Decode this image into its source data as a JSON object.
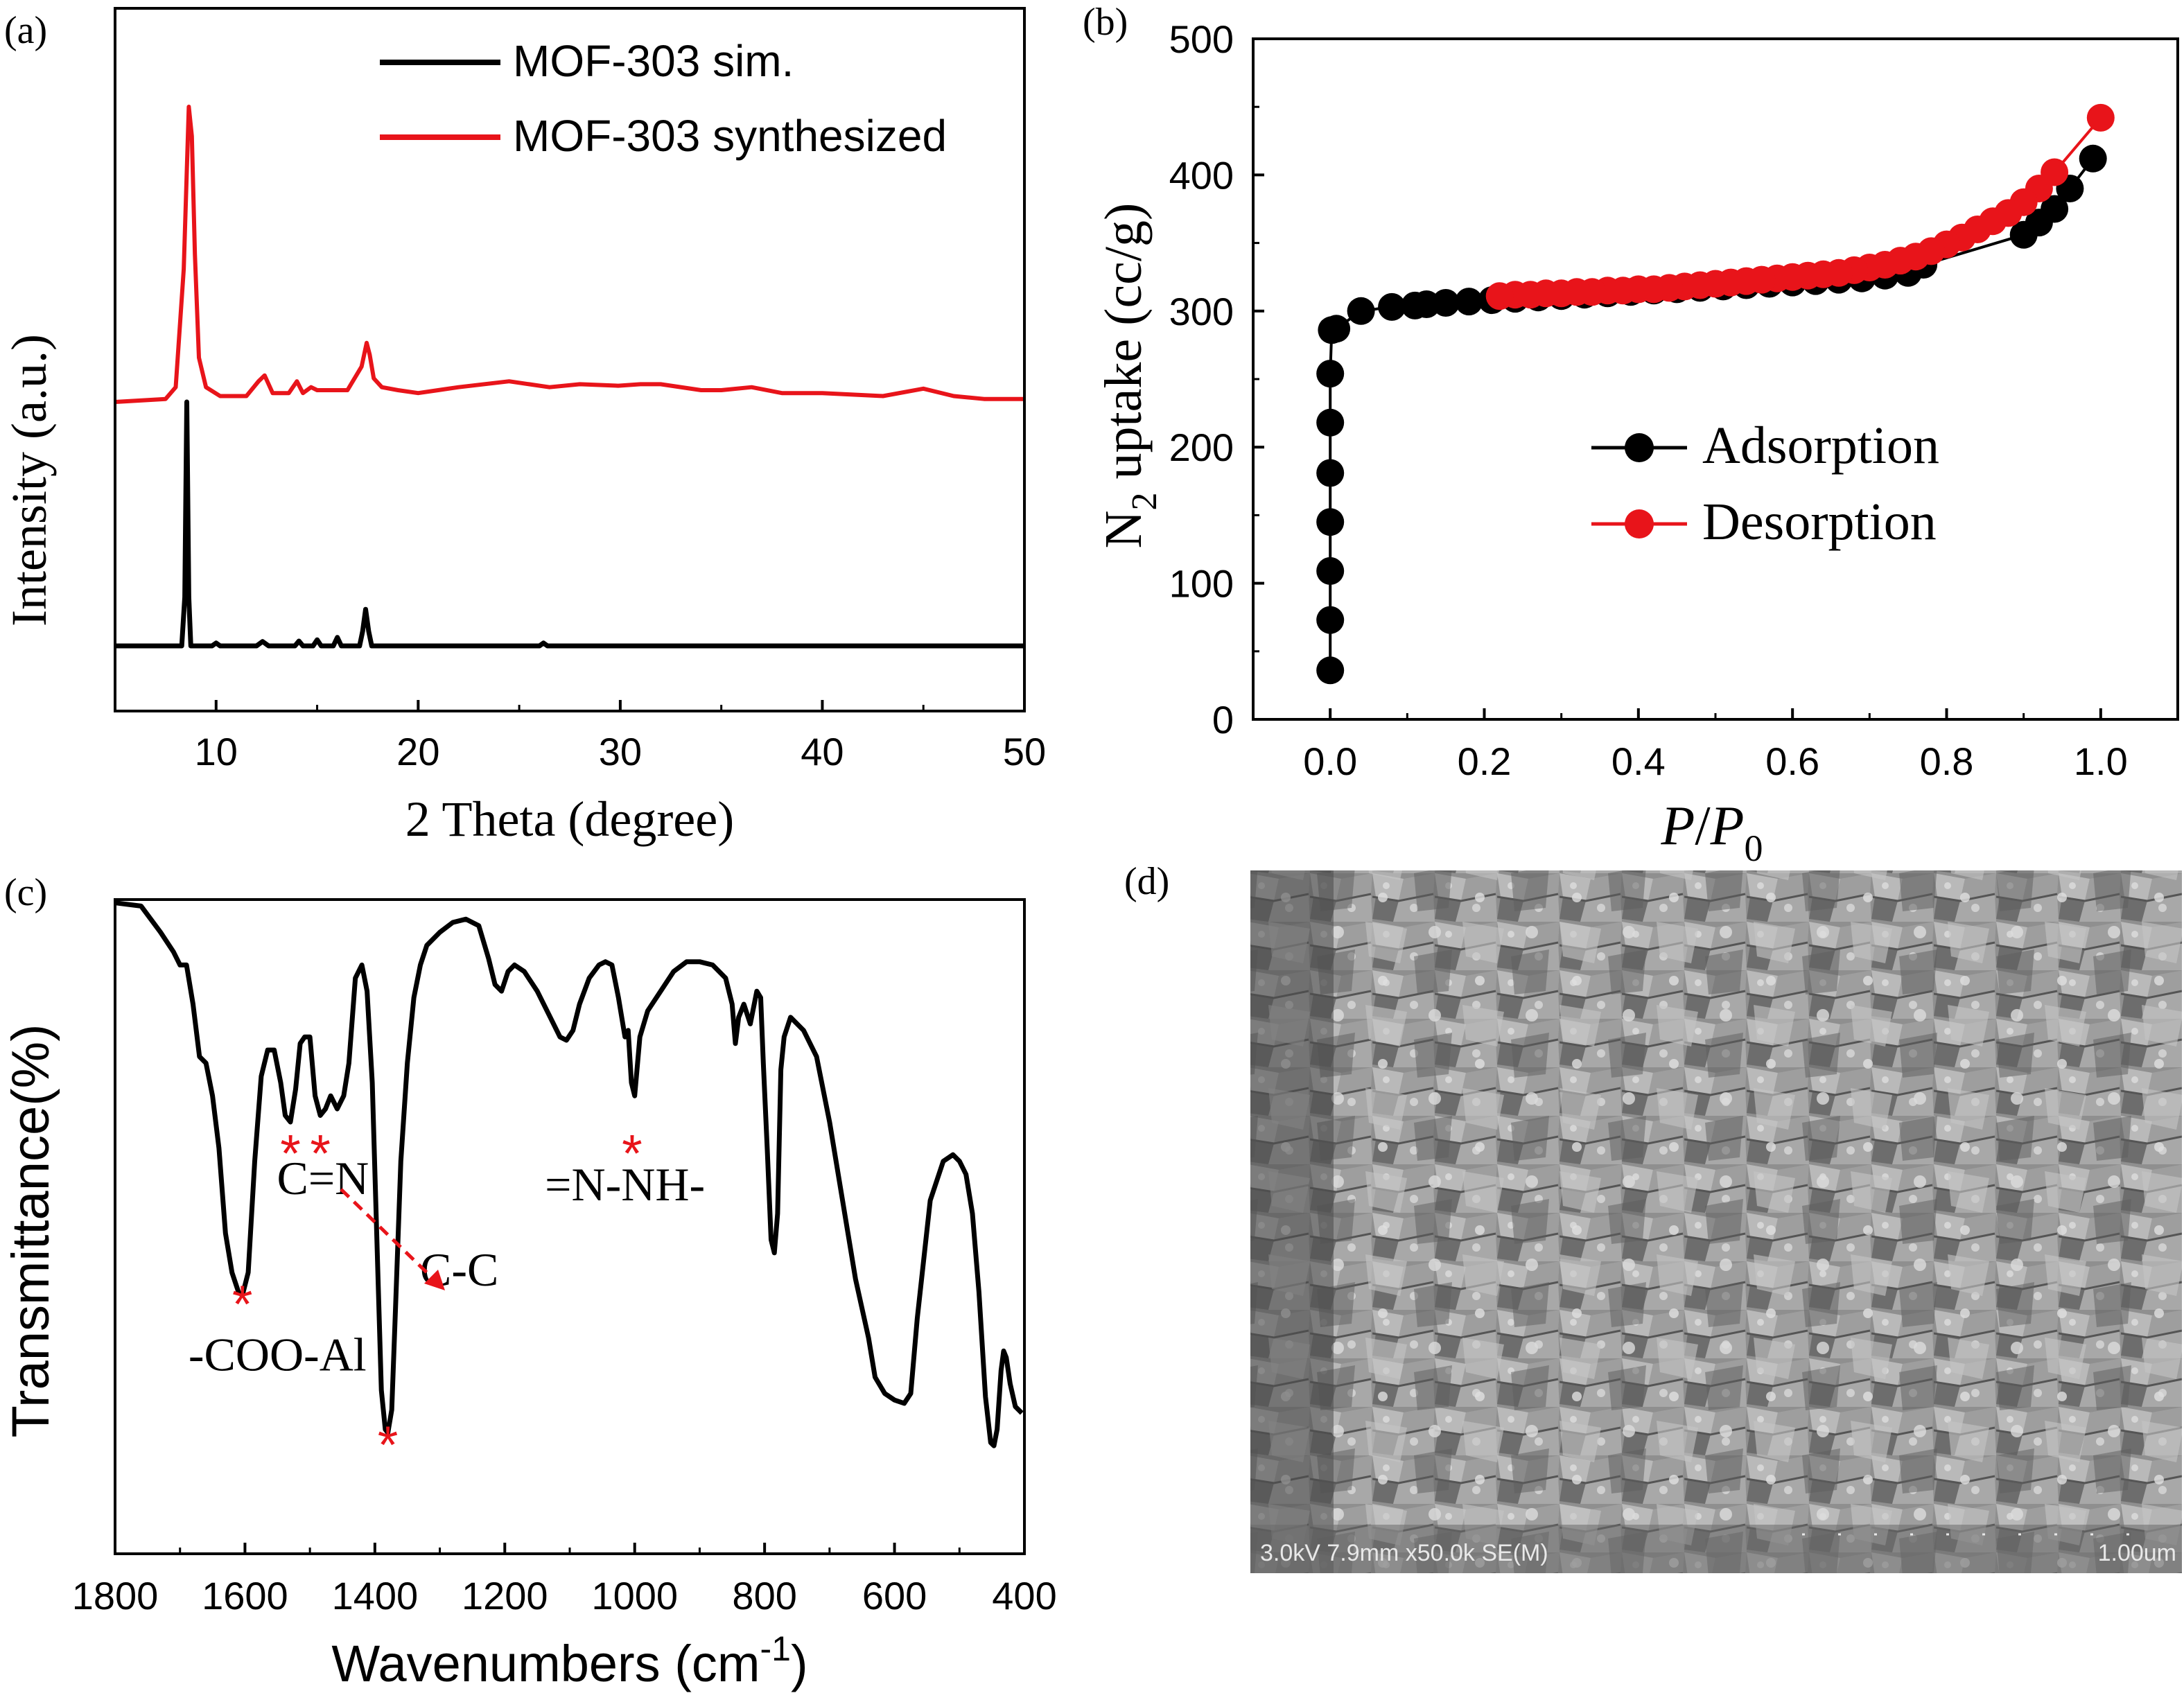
{
  "panel_labels": [
    "(a)",
    "(b)",
    "(c)",
    "(d)"
  ],
  "colors": {
    "black": "#000000",
    "red": "#e8141a",
    "sem_dark": "#3c3c3c",
    "sem_light": "#b4b4b4"
  },
  "sem": {
    "info": "3.0kV 7.9mm x50.0k SE(M)",
    "scale": "1.00um"
  },
  "chart_data": [
    {
      "type": "line",
      "panel": "(a)",
      "xlabel": "2 Theta (degree)",
      "ylabel": "Intensity (a.u.)",
      "xlim": [
        5,
        50
      ],
      "xticks": [
        10,
        20,
        30,
        40,
        50
      ],
      "legend_position": "top-right",
      "series": [
        {
          "name": "MOF-303 sim.",
          "color": "#000000",
          "x": [
            5,
            8.3,
            8.45,
            8.55,
            8.65,
            8.75,
            9.0,
            9.8,
            10.0,
            10.2,
            10.6,
            12.0,
            12.3,
            12.6,
            13.9,
            14.1,
            14.3,
            14.8,
            15.0,
            15.2,
            15.8,
            16.0,
            16.2,
            17.1,
            17.25,
            17.4,
            17.55,
            17.7,
            18.5,
            26.0,
            26.2,
            26.4,
            30,
            35,
            50
          ],
          "y": [
            0,
            0,
            0.2,
            1.0,
            0.2,
            0,
            0,
            0,
            0.012,
            0,
            0,
            0,
            0.018,
            0,
            0,
            0.02,
            0,
            0,
            0.025,
            0,
            0,
            0.035,
            0,
            0,
            0.06,
            0.15,
            0.06,
            0,
            0,
            0,
            0.012,
            0,
            0,
            0,
            0
          ]
        },
        {
          "name": "MOF-303 synthesized",
          "color": "#e8141a",
          "x": [
            5,
            7.5,
            8.0,
            8.4,
            8.65,
            8.8,
            8.95,
            9.15,
            9.5,
            10.2,
            11.5,
            12.1,
            12.4,
            12.8,
            13.6,
            14.0,
            14.3,
            14.7,
            15.0,
            16.5,
            17.2,
            17.45,
            17.6,
            17.8,
            18.2,
            19.0,
            20.0,
            22.0,
            24.5,
            26.5,
            28.0,
            29.9,
            31.0,
            32.0,
            34.0,
            35.0,
            36.5,
            38.0,
            40.0,
            43.0,
            45.0,
            46.5,
            48.0,
            50.0
          ],
          "y": [
            0,
            0.01,
            0.05,
            0.45,
            1.0,
            0.9,
            0.5,
            0.15,
            0.05,
            0.02,
            0.02,
            0.07,
            0.09,
            0.03,
            0.03,
            0.07,
            0.03,
            0.05,
            0.04,
            0.04,
            0.12,
            0.2,
            0.16,
            0.08,
            0.05,
            0.04,
            0.03,
            0.05,
            0.07,
            0.05,
            0.06,
            0.055,
            0.06,
            0.06,
            0.04,
            0.04,
            0.05,
            0.03,
            0.03,
            0.02,
            0.045,
            0.02,
            0.01,
            0.01
          ]
        }
      ]
    },
    {
      "type": "scatter",
      "panel": "(b)",
      "xlabel_main": "P",
      "xlabel_mid": "/",
      "xlabel_italic2": "P",
      "xlabel_sub": "0",
      "ylabel_pre": "N",
      "ylabel_sub": "2",
      "ylabel_post": " uptake (cc/g)",
      "xlim": [
        -0.1,
        1.1
      ],
      "ylim": [
        0,
        500
      ],
      "xticks": [
        "0.0",
        "0.2",
        "0.4",
        "0.6",
        "0.8",
        "1.0"
      ],
      "yticks": [
        "0",
        "100",
        "200",
        "300",
        "400",
        "500"
      ],
      "legend_position": "center-right",
      "series": [
        {
          "name": "Adsorption",
          "color": "#000000",
          "x": [
            0.0,
            0.0,
            0.0,
            0.0,
            0.0,
            0.0,
            0.0,
            0.002,
            0.008,
            0.04,
            0.08,
            0.11,
            0.125,
            0.15,
            0.18,
            0.21,
            0.24,
            0.27,
            0.3,
            0.33,
            0.36,
            0.39,
            0.42,
            0.45,
            0.48,
            0.51,
            0.54,
            0.57,
            0.6,
            0.63,
            0.66,
            0.69,
            0.72,
            0.75,
            0.77,
            0.9,
            0.92,
            0.94,
            0.96,
            0.99
          ],
          "y": [
            36,
            73,
            109,
            145,
            181,
            218,
            254,
            286,
            287,
            300,
            303,
            304,
            305,
            306,
            307,
            308,
            309,
            310,
            311,
            312,
            313,
            314,
            315,
            316,
            317,
            318,
            319,
            320,
            321,
            322,
            323,
            324,
            326,
            328,
            334,
            356,
            365,
            375,
            390,
            412
          ]
        },
        {
          "name": "Desorption",
          "color": "#e8141a",
          "x": [
            1.0,
            0.94,
            0.92,
            0.9,
            0.88,
            0.86,
            0.84,
            0.82,
            0.8,
            0.78,
            0.76,
            0.74,
            0.72,
            0.7,
            0.68,
            0.66,
            0.64,
            0.62,
            0.6,
            0.58,
            0.56,
            0.54,
            0.52,
            0.5,
            0.48,
            0.46,
            0.44,
            0.42,
            0.4,
            0.38,
            0.36,
            0.34,
            0.32,
            0.3,
            0.28,
            0.26,
            0.24,
            0.22
          ],
          "y": [
            442,
            402,
            390,
            380,
            372,
            366,
            360,
            354,
            349,
            344,
            340,
            337,
            334,
            332,
            330,
            328,
            327,
            326,
            325,
            324,
            323,
            322,
            321,
            320,
            319,
            318,
            317,
            316,
            316,
            315,
            315,
            314,
            314,
            313,
            313,
            312,
            312,
            311
          ]
        }
      ]
    },
    {
      "type": "line",
      "panel": "(c)",
      "xlabel_pre": "Wavenumbers (cm",
      "xlabel_sup": "-1",
      "xlabel_post": ")",
      "ylabel": "Transmittance(%)",
      "xlim": [
        1800,
        400
      ],
      "ylim": [
        0,
        1
      ],
      "xticks": [
        1800,
        1600,
        1400,
        1200,
        1000,
        800,
        600,
        400
      ],
      "annotations": [
        {
          "text": "-COO-Al",
          "x": 1550,
          "y": 0.28,
          "marker_x": 1604,
          "marker_y": 0.39
        },
        {
          "text": "C=N",
          "x": 1480,
          "y": 0.55,
          "marker_x": 1530,
          "marker_y": 0.62
        },
        {
          "text": "C-C",
          "x": 1270,
          "y": 0.41,
          "marker_x": 1484,
          "marker_y": 0.62
        },
        {
          "text": "=N-NH-",
          "x": 1015,
          "y": 0.54,
          "marker_x": 1004,
          "marker_y": 0.62
        },
        {
          "text": "",
          "x": 0,
          "y": 0,
          "marker_x": 1380,
          "marker_y": 0.175
        }
      ],
      "series": [
        {
          "name": "",
          "color": "#000000",
          "x": [
            1800,
            1760,
            1730,
            1710,
            1700,
            1690,
            1680,
            1670,
            1660,
            1650,
            1640,
            1630,
            1620,
            1610,
            1604,
            1595,
            1585,
            1575,
            1565,
            1555,
            1545,
            1538,
            1530,
            1522,
            1515,
            1508,
            1500,
            1492,
            1484,
            1476,
            1468,
            1458,
            1448,
            1440,
            1430,
            1420,
            1412,
            1404,
            1396,
            1390,
            1384,
            1380,
            1374,
            1368,
            1360,
            1350,
            1340,
            1330,
            1320,
            1300,
            1280,
            1260,
            1240,
            1225,
            1215,
            1205,
            1195,
            1185,
            1170,
            1150,
            1130,
            1115,
            1105,
            1095,
            1085,
            1070,
            1055,
            1045,
            1035,
            1025,
            1015,
            1010,
            1005,
            1000,
            992,
            980,
            960,
            940,
            920,
            900,
            880,
            860,
            850,
            845,
            840,
            832,
            822,
            812,
            806,
            802,
            796,
            790,
            785,
            780,
            775,
            770,
            760,
            740,
            720,
            700,
            680,
            660,
            640,
            630,
            615,
            600,
            585,
            575,
            565,
            545,
            525,
            510,
            500,
            490,
            480,
            470,
            460,
            452,
            447,
            442,
            436,
            432,
            428,
            422,
            414,
            404
          ],
          "y": [
            0.995,
            0.99,
            0.95,
            0.92,
            0.9,
            0.9,
            0.84,
            0.76,
            0.75,
            0.7,
            0.62,
            0.49,
            0.43,
            0.4,
            0.395,
            0.43,
            0.6,
            0.73,
            0.77,
            0.77,
            0.72,
            0.67,
            0.66,
            0.71,
            0.78,
            0.79,
            0.79,
            0.7,
            0.67,
            0.68,
            0.7,
            0.68,
            0.7,
            0.75,
            0.88,
            0.9,
            0.86,
            0.72,
            0.45,
            0.25,
            0.19,
            0.185,
            0.22,
            0.38,
            0.6,
            0.75,
            0.85,
            0.9,
            0.93,
            0.95,
            0.965,
            0.97,
            0.96,
            0.91,
            0.87,
            0.86,
            0.89,
            0.9,
            0.89,
            0.86,
            0.82,
            0.79,
            0.785,
            0.8,
            0.84,
            0.88,
            0.9,
            0.905,
            0.9,
            0.85,
            0.79,
            0.8,
            0.72,
            0.7,
            0.79,
            0.83,
            0.86,
            0.89,
            0.905,
            0.905,
            0.9,
            0.88,
            0.84,
            0.78,
            0.82,
            0.84,
            0.81,
            0.86,
            0.85,
            0.75,
            0.62,
            0.48,
            0.46,
            0.52,
            0.74,
            0.79,
            0.82,
            0.8,
            0.76,
            0.66,
            0.54,
            0.42,
            0.33,
            0.27,
            0.245,
            0.235,
            0.23,
            0.245,
            0.36,
            0.54,
            0.6,
            0.61,
            0.6,
            0.58,
            0.52,
            0.4,
            0.24,
            0.17,
            0.165,
            0.19,
            0.28,
            0.31,
            0.3,
            0.26,
            0.225,
            0.215
          ]
        }
      ]
    }
  ]
}
